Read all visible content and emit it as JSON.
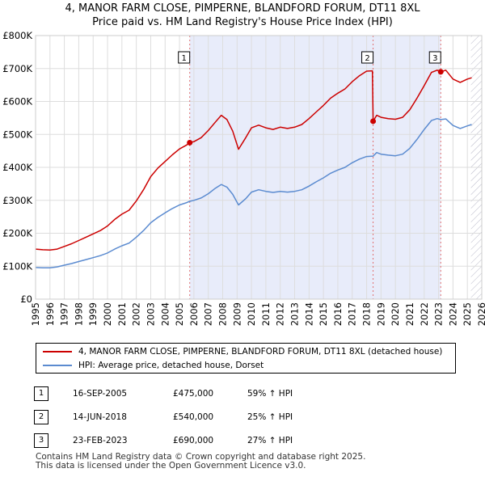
{
  "chart_data": {
    "type": "line",
    "title": "4, MANOR FARM CLOSE, PIMPERNE, BLANDFORD FORUM, DT11 8XL",
    "subtitle": "Price paid vs. HM Land Registry's House Price Index (HPI)",
    "xlabel": "",
    "ylabel": "",
    "xlim": [
      1995,
      2026
    ],
    "ylim": [
      0,
      800000
    ],
    "x_ticks": [
      "1995",
      "1996",
      "1997",
      "1998",
      "1999",
      "2000",
      "2001",
      "2002",
      "2003",
      "2004",
      "2005",
      "2006",
      "2007",
      "2008",
      "2009",
      "2010",
      "2011",
      "2012",
      "2013",
      "2014",
      "2015",
      "2016",
      "2017",
      "2018",
      "2019",
      "2020",
      "2021",
      "2022",
      "2023",
      "2024",
      "2025",
      "2026"
    ],
    "y_ticks": [
      {
        "value": 0,
        "label": "£0"
      },
      {
        "value": 100000,
        "label": "£100K"
      },
      {
        "value": 200000,
        "label": "£200K"
      },
      {
        "value": 300000,
        "label": "£300K"
      },
      {
        "value": 400000,
        "label": "£400K"
      },
      {
        "value": 500000,
        "label": "£500K"
      },
      {
        "value": 600000,
        "label": "£600K"
      },
      {
        "value": 700000,
        "label": "£700K"
      },
      {
        "value": 800000,
        "label": "£800K"
      }
    ],
    "grid": true,
    "hatched_future_from": 2025.25,
    "series": [
      {
        "name": "4, MANOR FARM CLOSE, PIMPERNE, BLANDFORD FORUM, DT11 8XL (detached house)",
        "color": "#cc0000",
        "points": [
          [
            1995.0,
            152000
          ],
          [
            1995.5,
            150000
          ],
          [
            1996.0,
            149000
          ],
          [
            1996.5,
            152000
          ],
          [
            1997.0,
            160000
          ],
          [
            1997.5,
            168000
          ],
          [
            1998.0,
            178000
          ],
          [
            1998.5,
            188000
          ],
          [
            1999.0,
            198000
          ],
          [
            1999.5,
            208000
          ],
          [
            2000.0,
            222000
          ],
          [
            2000.5,
            242000
          ],
          [
            2001.0,
            258000
          ],
          [
            2001.5,
            270000
          ],
          [
            2002.0,
            298000
          ],
          [
            2002.5,
            332000
          ],
          [
            2003.0,
            372000
          ],
          [
            2003.5,
            398000
          ],
          [
            2004.0,
            418000
          ],
          [
            2004.5,
            438000
          ],
          [
            2005.0,
            456000
          ],
          [
            2005.5,
            468000
          ],
          [
            2005.71,
            475000
          ],
          [
            2006.0,
            478000
          ],
          [
            2006.5,
            490000
          ],
          [
            2007.0,
            512000
          ],
          [
            2007.5,
            538000
          ],
          [
            2007.9,
            558000
          ],
          [
            2008.3,
            545000
          ],
          [
            2008.7,
            510000
          ],
          [
            2009.1,
            455000
          ],
          [
            2009.6,
            490000
          ],
          [
            2010.0,
            520000
          ],
          [
            2010.5,
            528000
          ],
          [
            2011.0,
            520000
          ],
          [
            2011.5,
            515000
          ],
          [
            2012.0,
            522000
          ],
          [
            2012.5,
            518000
          ],
          [
            2013.0,
            522000
          ],
          [
            2013.5,
            530000
          ],
          [
            2014.0,
            548000
          ],
          [
            2014.5,
            568000
          ],
          [
            2015.0,
            588000
          ],
          [
            2015.5,
            610000
          ],
          [
            2016.0,
            625000
          ],
          [
            2016.5,
            638000
          ],
          [
            2017.0,
            660000
          ],
          [
            2017.5,
            678000
          ],
          [
            2018.0,
            692000
          ],
          [
            2018.4,
            693000
          ],
          [
            2018.45,
            540000
          ],
          [
            2018.7,
            558000
          ],
          [
            2019.0,
            552000
          ],
          [
            2019.5,
            548000
          ],
          [
            2020.0,
            546000
          ],
          [
            2020.5,
            552000
          ],
          [
            2021.0,
            575000
          ],
          [
            2021.5,
            610000
          ],
          [
            2022.0,
            648000
          ],
          [
            2022.5,
            688000
          ],
          [
            2022.9,
            695000
          ],
          [
            2023.15,
            690000
          ],
          [
            2023.5,
            695000
          ],
          [
            2024.0,
            668000
          ],
          [
            2024.5,
            658000
          ],
          [
            2025.0,
            668000
          ],
          [
            2025.3,
            672000
          ]
        ]
      },
      {
        "name": "HPI: Average price, detached house, Dorset",
        "color": "#5b8bd0",
        "points": [
          [
            1995.0,
            96000
          ],
          [
            1995.5,
            95000
          ],
          [
            1996.0,
            95000
          ],
          [
            1996.5,
            98000
          ],
          [
            1997.0,
            103000
          ],
          [
            1997.5,
            108000
          ],
          [
            1998.0,
            114000
          ],
          [
            1998.5,
            120000
          ],
          [
            1999.0,
            126000
          ],
          [
            1999.5,
            132000
          ],
          [
            2000.0,
            140000
          ],
          [
            2000.5,
            152000
          ],
          [
            2001.0,
            162000
          ],
          [
            2001.5,
            170000
          ],
          [
            2002.0,
            188000
          ],
          [
            2002.5,
            208000
          ],
          [
            2003.0,
            232000
          ],
          [
            2003.5,
            248000
          ],
          [
            2004.0,
            262000
          ],
          [
            2004.5,
            275000
          ],
          [
            2005.0,
            286000
          ],
          [
            2005.5,
            293000
          ],
          [
            2005.71,
            297000
          ],
          [
            2006.0,
            300000
          ],
          [
            2006.5,
            307000
          ],
          [
            2007.0,
            320000
          ],
          [
            2007.5,
            337000
          ],
          [
            2007.9,
            348000
          ],
          [
            2008.3,
            340000
          ],
          [
            2008.7,
            318000
          ],
          [
            2009.1,
            286000
          ],
          [
            2009.6,
            305000
          ],
          [
            2010.0,
            325000
          ],
          [
            2010.5,
            332000
          ],
          [
            2011.0,
            327000
          ],
          [
            2011.5,
            324000
          ],
          [
            2012.0,
            327000
          ],
          [
            2012.5,
            325000
          ],
          [
            2013.0,
            327000
          ],
          [
            2013.5,
            332000
          ],
          [
            2014.0,
            343000
          ],
          [
            2014.5,
            356000
          ],
          [
            2015.0,
            368000
          ],
          [
            2015.5,
            382000
          ],
          [
            2016.0,
            392000
          ],
          [
            2016.5,
            400000
          ],
          [
            2017.0,
            414000
          ],
          [
            2017.5,
            425000
          ],
          [
            2018.0,
            433000
          ],
          [
            2018.45,
            434000
          ],
          [
            2018.7,
            445000
          ],
          [
            2019.0,
            440000
          ],
          [
            2019.5,
            437000
          ],
          [
            2020.0,
            435000
          ],
          [
            2020.5,
            440000
          ],
          [
            2021.0,
            458000
          ],
          [
            2021.5,
            485000
          ],
          [
            2022.0,
            515000
          ],
          [
            2022.5,
            542000
          ],
          [
            2022.9,
            548000
          ],
          [
            2023.15,
            545000
          ],
          [
            2023.5,
            547000
          ],
          [
            2024.0,
            527000
          ],
          [
            2024.5,
            518000
          ],
          [
            2025.0,
            526000
          ],
          [
            2025.3,
            530000
          ]
        ]
      }
    ],
    "sales": [
      {
        "label": "1",
        "x": 2005.71,
        "value": 475000
      },
      {
        "label": "2",
        "x": 2018.45,
        "value": 540000
      },
      {
        "label": "3",
        "x": 2023.15,
        "value": 690000
      }
    ]
  },
  "legend": {
    "items": [
      {
        "label": "4, MANOR FARM CLOSE, PIMPERNE, BLANDFORD FORUM, DT11 8XL (detached house)",
        "color": "#cc0000"
      },
      {
        "label": "HPI: Average price, detached house, Dorset",
        "color": "#5b8bd0"
      }
    ]
  },
  "transactions": [
    {
      "num": "1",
      "date": "16-SEP-2005",
      "price": "£475,000",
      "hpi": "59% ↑ HPI"
    },
    {
      "num": "2",
      "date": "14-JUN-2018",
      "price": "£540,000",
      "hpi": "25% ↑ HPI"
    },
    {
      "num": "3",
      "date": "23-FEB-2023",
      "price": "£690,000",
      "hpi": "27% ↑ HPI"
    }
  ],
  "footer": {
    "line1": "Contains HM Land Registry data © Crown copyright and database right 2025.",
    "line2": "This data is licensed under the Open Government Licence v3.0."
  }
}
